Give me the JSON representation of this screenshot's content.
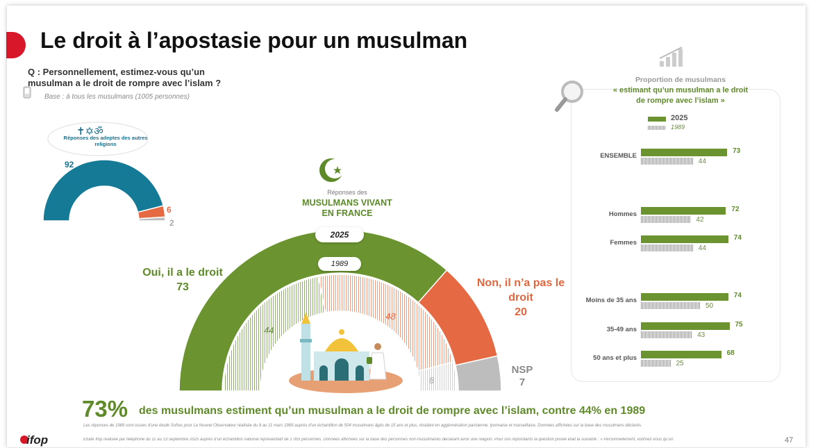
{
  "title": "Le droit à l’apostasie pour un musulman",
  "question": "Q : Personnellement, estimez-vous qu’un musulman a le droit de rompre avec l’islam ?",
  "base": "Base : à tous les musulmans (1005 personnes)",
  "other_religions": {
    "label": "Réponses des adeptes des autres religions",
    "values": [
      92,
      6,
      2
    ]
  },
  "center": {
    "small_label": "Réponses des",
    "label": "MUSULMANS VIVANT EN FRANCE",
    "year_outer": "2025",
    "year_inner": "1989",
    "oui_label": "Oui, il a le droit",
    "oui_value": "73",
    "non_label": "Non, il n’a pas le droit",
    "non_value": "20",
    "nsp_label": "NSP",
    "nsp_value": "7",
    "inner_oui": "44",
    "inner_non": "48",
    "inner_nsp": "8"
  },
  "chart_data": [
    {
      "type": "pie",
      "title": "Réponses des adeptes des autres religions",
      "categories": [
        "Oui, il a le droit",
        "Non, il n’a pas le droit",
        "NSP"
      ],
      "values": [
        92,
        6,
        2
      ]
    },
    {
      "type": "pie",
      "title": "Réponses des MUSULMANS VIVANT EN FRANCE",
      "categories": [
        "Oui, il a le droit",
        "Non, il n’a pas le droit",
        "NSP"
      ],
      "series": [
        {
          "name": "2025",
          "values": [
            73,
            20,
            7
          ]
        },
        {
          "name": "1989",
          "values": [
            44,
            48,
            8
          ]
        }
      ]
    },
    {
      "type": "bar",
      "title": "Proportion de musulmans « estimant qu’un musulman a le droit de rompre avec l’islam »",
      "categories": [
        "ENSEMBLE",
        "Hommes",
        "Femmes",
        "Moins de 35 ans",
        "35-49 ans",
        "50 ans et plus"
      ],
      "series": [
        {
          "name": "2025",
          "values": [
            73,
            72,
            74,
            74,
            75,
            68
          ]
        },
        {
          "name": "1989",
          "values": [
            44,
            42,
            44,
            50,
            43,
            25
          ]
        }
      ],
      "xlim": [
        0,
        100
      ]
    }
  ],
  "panel": {
    "title_line1": "Proportion de musulmans",
    "title_line2": "« estimant qu’un musulman a le droit de rompre avec l’islam »",
    "legend_2025": "2025",
    "legend_1989": "1989"
  },
  "conclusion": {
    "big": "73%",
    "text": "des musulmans estiment qu’un musulman a le droit de rompre avec l’islam, contre 44% en 1989"
  },
  "notes": [
    "Les réponses de 1989 sont issues d’une étude Sofres pour Le Nouvel Observateur réalisée du 8 au 11 mars 1989 auprès d’un échantillon de 504 musulmans âgés de 15 ans et plus, résidant en agglomération parisienne, lyonnaise et marseillaise. Données affichées sur la base des musulmans déclarés.",
    "Etude Ifop réalisée par téléphone du 11 au 13 septembre 2025 auprès d’un échantillon national représentatif de 1 005 personnes. Données affichées sur la base des personnes non-musulmanes déclarant avoir une religion. Pour ces répondants la question posée était la suivante : « Personnellement, estimez-vous qu’un"
  ],
  "page_number": "47",
  "logo": "ifop",
  "colors": {
    "green": "#6b9430",
    "orange": "#e56a43",
    "grey": "#bdbdbd",
    "teal": "#157a95",
    "red": "#d7182a"
  }
}
